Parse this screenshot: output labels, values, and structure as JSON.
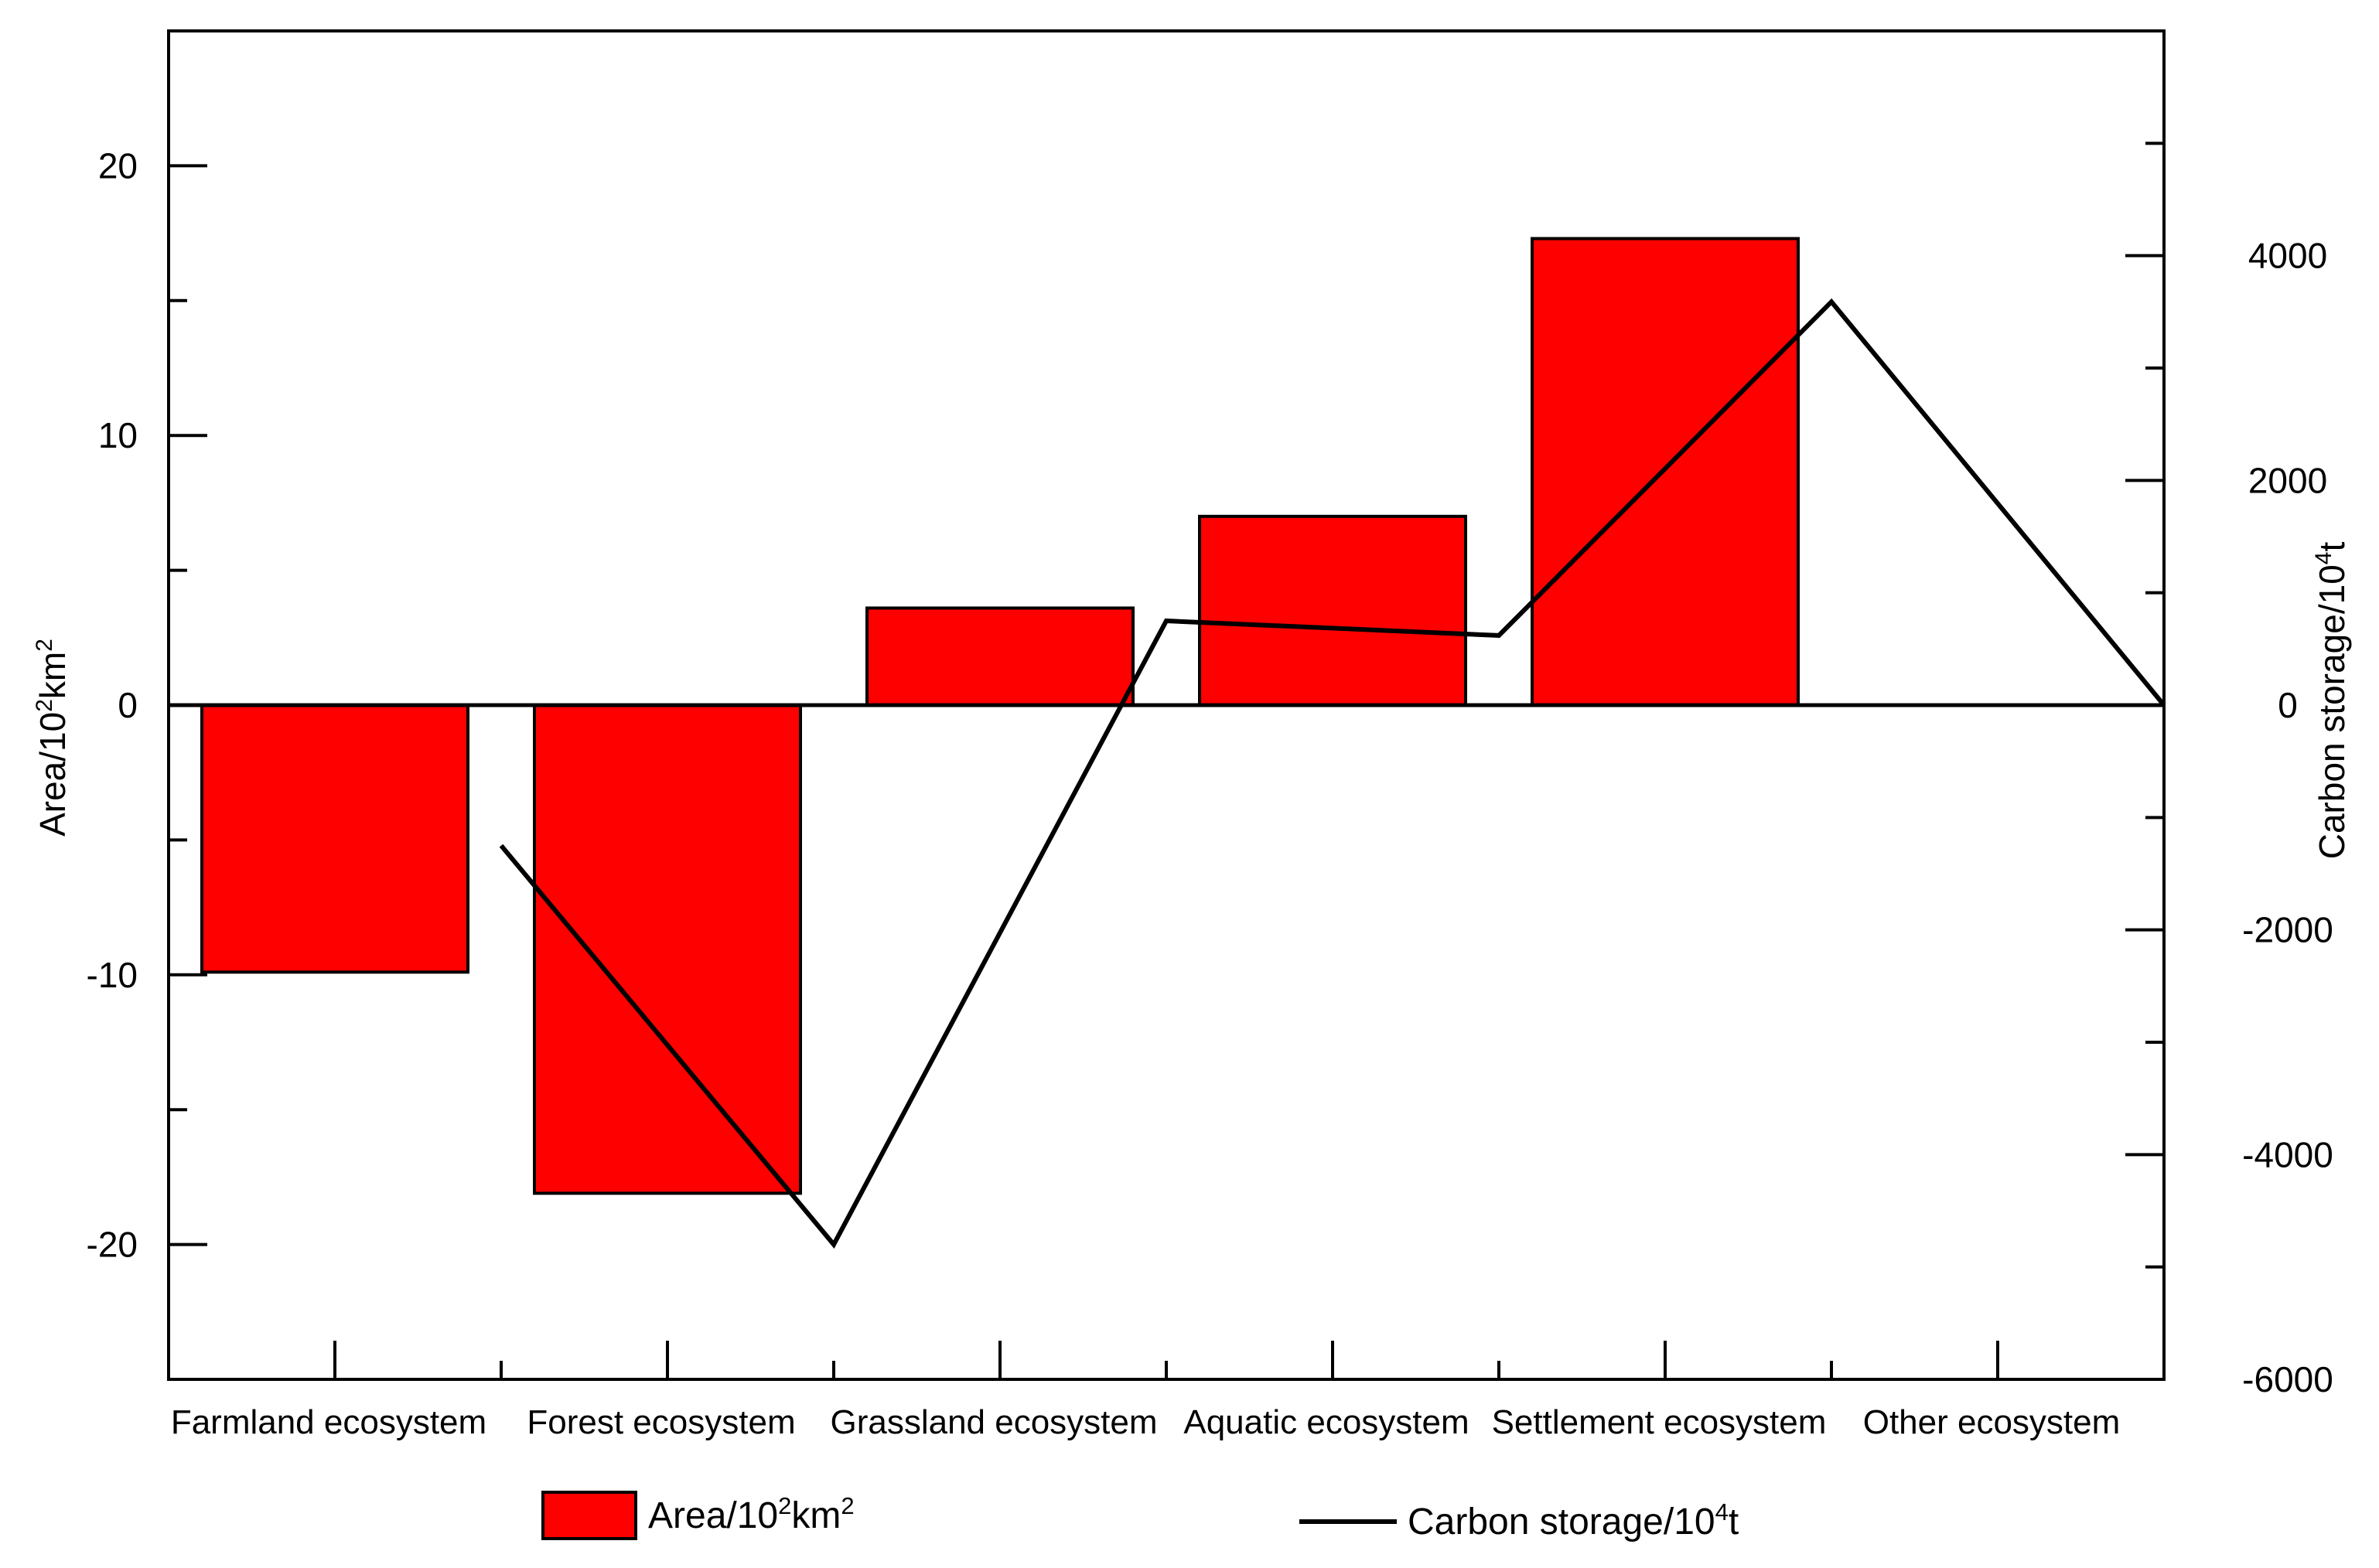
{
  "chart_data": {
    "type": "bar",
    "categories": [
      "Farmland ecosystem",
      "Forest ecosystem",
      "Grassland ecosystem",
      "Aquatic ecosystem",
      "Settlement ecosystem",
      "Other ecosystem"
    ],
    "series": [
      {
        "name": "Area/10²km²",
        "type": "bar",
        "axis": "left",
        "color": "#ff0000",
        "values": [
          -9.9,
          -18.1,
          3.6,
          7.0,
          17.3,
          null
        ]
      },
      {
        "name": "Carbon storage/10⁴t",
        "type": "line",
        "axis": "right",
        "color": "#000000",
        "values": [
          -1250,
          -4800,
          750,
          620,
          3590,
          0
        ]
      }
    ],
    "y_left": {
      "label_parts": [
        "Area/10",
        "2",
        "km",
        "2"
      ],
      "ylim": [
        -25,
        25
      ],
      "ticks": [
        -20,
        -10,
        0,
        10,
        20
      ],
      "tick_labels": [
        "-20",
        "-10",
        "0",
        "10",
        "20"
      ]
    },
    "y_right": {
      "label_parts": [
        "Carbon storage/10",
        "4",
        "t"
      ],
      "ylim": [
        -6000,
        6000
      ],
      "ticks": [
        -6000,
        -4000,
        -2000,
        0,
        2000,
        4000
      ],
      "tick_labels": [
        "-6000",
        "-4000",
        "-2000",
        "0",
        "2000",
        "4000"
      ]
    },
    "legend": {
      "placement": "bottom",
      "bar_parts": [
        "Area/10",
        "2",
        "km",
        "2"
      ],
      "line_parts": [
        "Carbon storage/10",
        "4",
        "t"
      ]
    },
    "grid": false
  }
}
